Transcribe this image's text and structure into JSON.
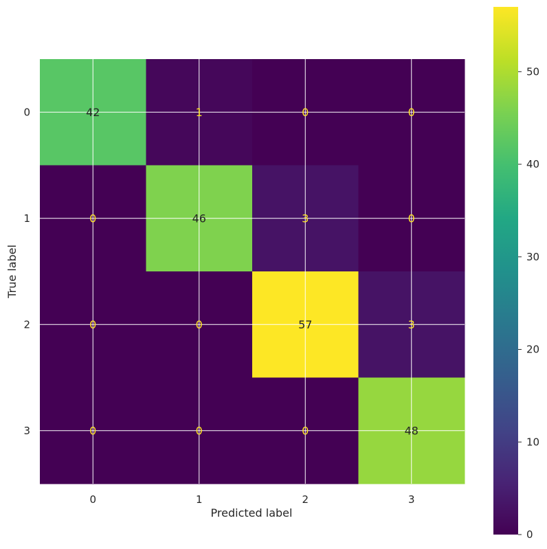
{
  "chart_data": {
    "type": "heatmap",
    "title": "",
    "xlabel": "Predicted label",
    "ylabel": "True label",
    "x_categories": [
      "0",
      "1",
      "2",
      "3"
    ],
    "y_categories": [
      "0",
      "1",
      "2",
      "3"
    ],
    "matrix": [
      [
        42,
        1,
        0,
        0
      ],
      [
        0,
        46,
        3,
        0
      ],
      [
        0,
        0,
        57,
        3
      ],
      [
        0,
        0,
        0,
        48
      ]
    ],
    "colormap": "viridis",
    "color_range": [
      0,
      57
    ],
    "colorbar_ticks": [
      0,
      10,
      20,
      30,
      40,
      50
    ],
    "grid": true,
    "colors": {
      "dark_text": "#262626",
      "light_text": "#fde725",
      "grid_line": "#ffffff"
    }
  }
}
